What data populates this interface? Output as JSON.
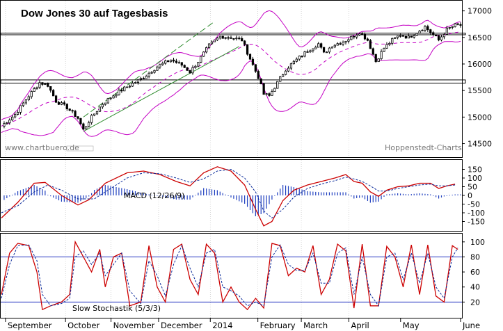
{
  "chart_data": [
    {
      "type": "candlestick",
      "title": "Dow Jones 30 auf Tagesbasis",
      "watermark_left": "www.chartbuero.de",
      "watermark_right": "Hoppenstedt-Charts",
      "y_ticks": [
        14500,
        15000,
        15500,
        16000,
        16500,
        17000
      ],
      "y_tick_labels": [
        "14500",
        "15000",
        "15500",
        "16000",
        "16500",
        "17000"
      ],
      "ylim": [
        14350,
        17100
      ],
      "support_resistance_bands": [
        {
          "low": 15640,
          "high": 15700
        },
        {
          "low": 16550,
          "high": 16580
        }
      ],
      "price_path": [
        [
          0,
          14830
        ],
        [
          5,
          15050
        ],
        [
          10,
          15400
        ],
        [
          14,
          15650
        ],
        [
          17,
          15600
        ],
        [
          20,
          15300
        ],
        [
          24,
          15180
        ],
        [
          28,
          14980
        ],
        [
          30,
          14760
        ],
        [
          33,
          15000
        ],
        [
          37,
          15250
        ],
        [
          42,
          15450
        ],
        [
          47,
          15600
        ],
        [
          52,
          15750
        ],
        [
          57,
          15950
        ],
        [
          62,
          16080
        ],
        [
          66,
          15980
        ],
        [
          69,
          15850
        ],
        [
          72,
          16050
        ],
        [
          76,
          16350
        ],
        [
          80,
          16520
        ],
        [
          84,
          16500
        ],
        [
          88,
          16450
        ],
        [
          91,
          16100
        ],
        [
          94,
          15750
        ],
        [
          96,
          15430
        ],
        [
          98,
          15400
        ],
        [
          101,
          15650
        ],
        [
          104,
          15900
        ],
        [
          108,
          16080
        ],
        [
          112,
          16250
        ],
        [
          116,
          16380
        ],
        [
          118,
          16200
        ],
        [
          121,
          16350
        ],
        [
          125,
          16420
        ],
        [
          128,
          16500
        ],
        [
          131,
          16600
        ],
        [
          134,
          16450
        ],
        [
          137,
          16050
        ],
        [
          140,
          16300
        ],
        [
          143,
          16450
        ],
        [
          146,
          16550
        ],
        [
          149,
          16500
        ],
        [
          152,
          16600
        ],
        [
          155,
          16700
        ],
        [
          158,
          16550
        ],
        [
          160,
          16450
        ],
        [
          163,
          16650
        ],
        [
          166,
          16730
        ]
      ],
      "trend_lines": [
        {
          "color": "#2e8b2e",
          "dash": true,
          "points": [
            [
              30,
              15000
            ],
            [
              78,
              16800
            ]
          ]
        },
        {
          "color": "#2e8b2e",
          "dash": false,
          "points": [
            [
              30,
              14730
            ],
            [
              87,
              16330
            ]
          ]
        }
      ]
    },
    {
      "type": "line",
      "label": "MACD (12/26/9)",
      "y_ticks": [
        150,
        100,
        50,
        0,
        -50,
        -100,
        -150
      ],
      "y_tick_labels": [
        "150",
        "100",
        "50",
        "0",
        "-50",
        "-100",
        "-150"
      ],
      "ylim": [
        -200,
        200
      ],
      "series": [
        {
          "color": "#cc0000",
          "points": [
            [
              0,
              -130
            ],
            [
              6,
              -40
            ],
            [
              12,
              70
            ],
            [
              16,
              75
            ],
            [
              22,
              0
            ],
            [
              28,
              -55
            ],
            [
              32,
              -25
            ],
            [
              38,
              70
            ],
            [
              46,
              130
            ],
            [
              52,
              140
            ],
            [
              58,
              120
            ],
            [
              64,
              80
            ],
            [
              69,
              55
            ],
            [
              74,
              130
            ],
            [
              79,
              165
            ],
            [
              84,
              140
            ],
            [
              89,
              60
            ],
            [
              93,
              -80
            ],
            [
              96,
              -175
            ],
            [
              99,
              -150
            ],
            [
              103,
              -30
            ],
            [
              107,
              30
            ],
            [
              112,
              60
            ],
            [
              117,
              80
            ],
            [
              122,
              100
            ],
            [
              126,
              120
            ],
            [
              129,
              80
            ],
            [
              132,
              70
            ],
            [
              135,
              20
            ],
            [
              138,
              -5
            ],
            [
              141,
              30
            ],
            [
              145,
              50
            ],
            [
              149,
              55
            ],
            [
              153,
              70
            ],
            [
              157,
              70
            ],
            [
              160,
              40
            ],
            [
              163,
              55
            ],
            [
              166,
              65
            ]
          ]
        },
        {
          "color": "#0a2a9a",
          "dash": true,
          "points": [
            [
              0,
              -100
            ],
            [
              6,
              -60
            ],
            [
              12,
              20
            ],
            [
              17,
              60
            ],
            [
              22,
              30
            ],
            [
              28,
              -20
            ],
            [
              34,
              -20
            ],
            [
              40,
              40
            ],
            [
              46,
              100
            ],
            [
              52,
              130
            ],
            [
              58,
              125
            ],
            [
              64,
              100
            ],
            [
              69,
              75
            ],
            [
              74,
              95
            ],
            [
              79,
              140
            ],
            [
              84,
              150
            ],
            [
              89,
              100
            ],
            [
              93,
              20
            ],
            [
              96,
              -90
            ],
            [
              99,
              -130
            ],
            [
              103,
              -80
            ],
            [
              107,
              -10
            ],
            [
              112,
              40
            ],
            [
              117,
              65
            ],
            [
              122,
              85
            ],
            [
              126,
              105
            ],
            [
              129,
              95
            ],
            [
              132,
              80
            ],
            [
              135,
              55
            ],
            [
              138,
              25
            ],
            [
              141,
              25
            ],
            [
              145,
              40
            ],
            [
              149,
              50
            ],
            [
              153,
              60
            ],
            [
              157,
              65
            ],
            [
              160,
              55
            ],
            [
              163,
              55
            ],
            [
              166,
              60
            ]
          ]
        }
      ]
    },
    {
      "type": "line",
      "label": "Slow Stochastik (5/3/3)",
      "y_ticks": [
        100,
        80,
        60,
        40,
        20
      ],
      "y_tick_labels": [
        "100",
        "80",
        "60",
        "40",
        "20"
      ],
      "ylim": [
        0,
        110
      ],
      "reference_lines": [
        80,
        20
      ],
      "series": [
        {
          "color": "#cc0000",
          "points": [
            [
              0,
              30
            ],
            [
              3,
              85
            ],
            [
              6,
              98
            ],
            [
              10,
              95
            ],
            [
              13,
              60
            ],
            [
              15,
              10
            ],
            [
              18,
              15
            ],
            [
              22,
              20
            ],
            [
              25,
              30
            ],
            [
              27,
              100
            ],
            [
              30,
              80
            ],
            [
              33,
              60
            ],
            [
              36,
              90
            ],
            [
              38,
              40
            ],
            [
              41,
              80
            ],
            [
              44,
              85
            ],
            [
              47,
              15
            ],
            [
              51,
              20
            ],
            [
              54,
              95
            ],
            [
              57,
              40
            ],
            [
              60,
              20
            ],
            [
              63,
              90
            ],
            [
              66,
              97
            ],
            [
              69,
              50
            ],
            [
              72,
              30
            ],
            [
              75,
              97
            ],
            [
              78,
              85
            ],
            [
              81,
              20
            ],
            [
              84,
              40
            ],
            [
              87,
              20
            ],
            [
              90,
              10
            ],
            [
              93,
              25
            ],
            [
              96,
              12
            ],
            [
              99,
              98
            ],
            [
              102,
              95
            ],
            [
              105,
              55
            ],
            [
              108,
              65
            ],
            [
              111,
              60
            ],
            [
              114,
              95
            ],
            [
              117,
              30
            ],
            [
              120,
              50
            ],
            [
              123,
              97
            ],
            [
              126,
              88
            ],
            [
              129,
              12
            ],
            [
              132,
              97
            ],
            [
              135,
              15
            ],
            [
              138,
              15
            ],
            [
              141,
              94
            ],
            [
              144,
              80
            ],
            [
              147,
              40
            ],
            [
              150,
              96
            ],
            [
              153,
              30
            ],
            [
              156,
              96
            ],
            [
              159,
              28
            ],
            [
              162,
              20
            ],
            [
              165,
              95
            ],
            [
              167,
              90
            ]
          ]
        },
        {
          "color": "#0a2a9a",
          "dash": true,
          "points": [
            [
              0,
              25
            ],
            [
              3,
              70
            ],
            [
              6,
              95
            ],
            [
              10,
              96
            ],
            [
              13,
              75
            ],
            [
              15,
              30
            ],
            [
              18,
              15
            ],
            [
              22,
              18
            ],
            [
              25,
              25
            ],
            [
              27,
              80
            ],
            [
              30,
              88
            ],
            [
              33,
              70
            ],
            [
              36,
              85
            ],
            [
              38,
              55
            ],
            [
              41,
              70
            ],
            [
              44,
              85
            ],
            [
              47,
              35
            ],
            [
              51,
              18
            ],
            [
              54,
              75
            ],
            [
              57,
              55
            ],
            [
              60,
              28
            ],
            [
              63,
              70
            ],
            [
              66,
              95
            ],
            [
              69,
              65
            ],
            [
              72,
              40
            ],
            [
              75,
              85
            ],
            [
              78,
              90
            ],
            [
              81,
              40
            ],
            [
              84,
              35
            ],
            [
              87,
              28
            ],
            [
              90,
              15
            ],
            [
              93,
              20
            ],
            [
              96,
              15
            ],
            [
              99,
              80
            ],
            [
              102,
              96
            ],
            [
              105,
              70
            ],
            [
              108,
              62
            ],
            [
              111,
              62
            ],
            [
              114,
              85
            ],
            [
              117,
              45
            ],
            [
              120,
              45
            ],
            [
              123,
              85
            ],
            [
              126,
              92
            ],
            [
              129,
              30
            ],
            [
              132,
              80
            ],
            [
              135,
              30
            ],
            [
              138,
              15
            ],
            [
              141,
              80
            ],
            [
              144,
              85
            ],
            [
              147,
              50
            ],
            [
              150,
              85
            ],
            [
              153,
              45
            ],
            [
              156,
              85
            ],
            [
              159,
              40
            ],
            [
              162,
              25
            ],
            [
              165,
              80
            ],
            [
              167,
              92
            ]
          ]
        }
      ]
    }
  ],
  "x_axis": {
    "labels": [
      "September",
      "October",
      "November",
      "December",
      "2014",
      "February",
      "March",
      "April",
      "May",
      "June"
    ],
    "label_days": [
      2,
      31,
      53,
      76,
      101,
      124,
      145,
      168,
      193,
      222
    ]
  }
}
